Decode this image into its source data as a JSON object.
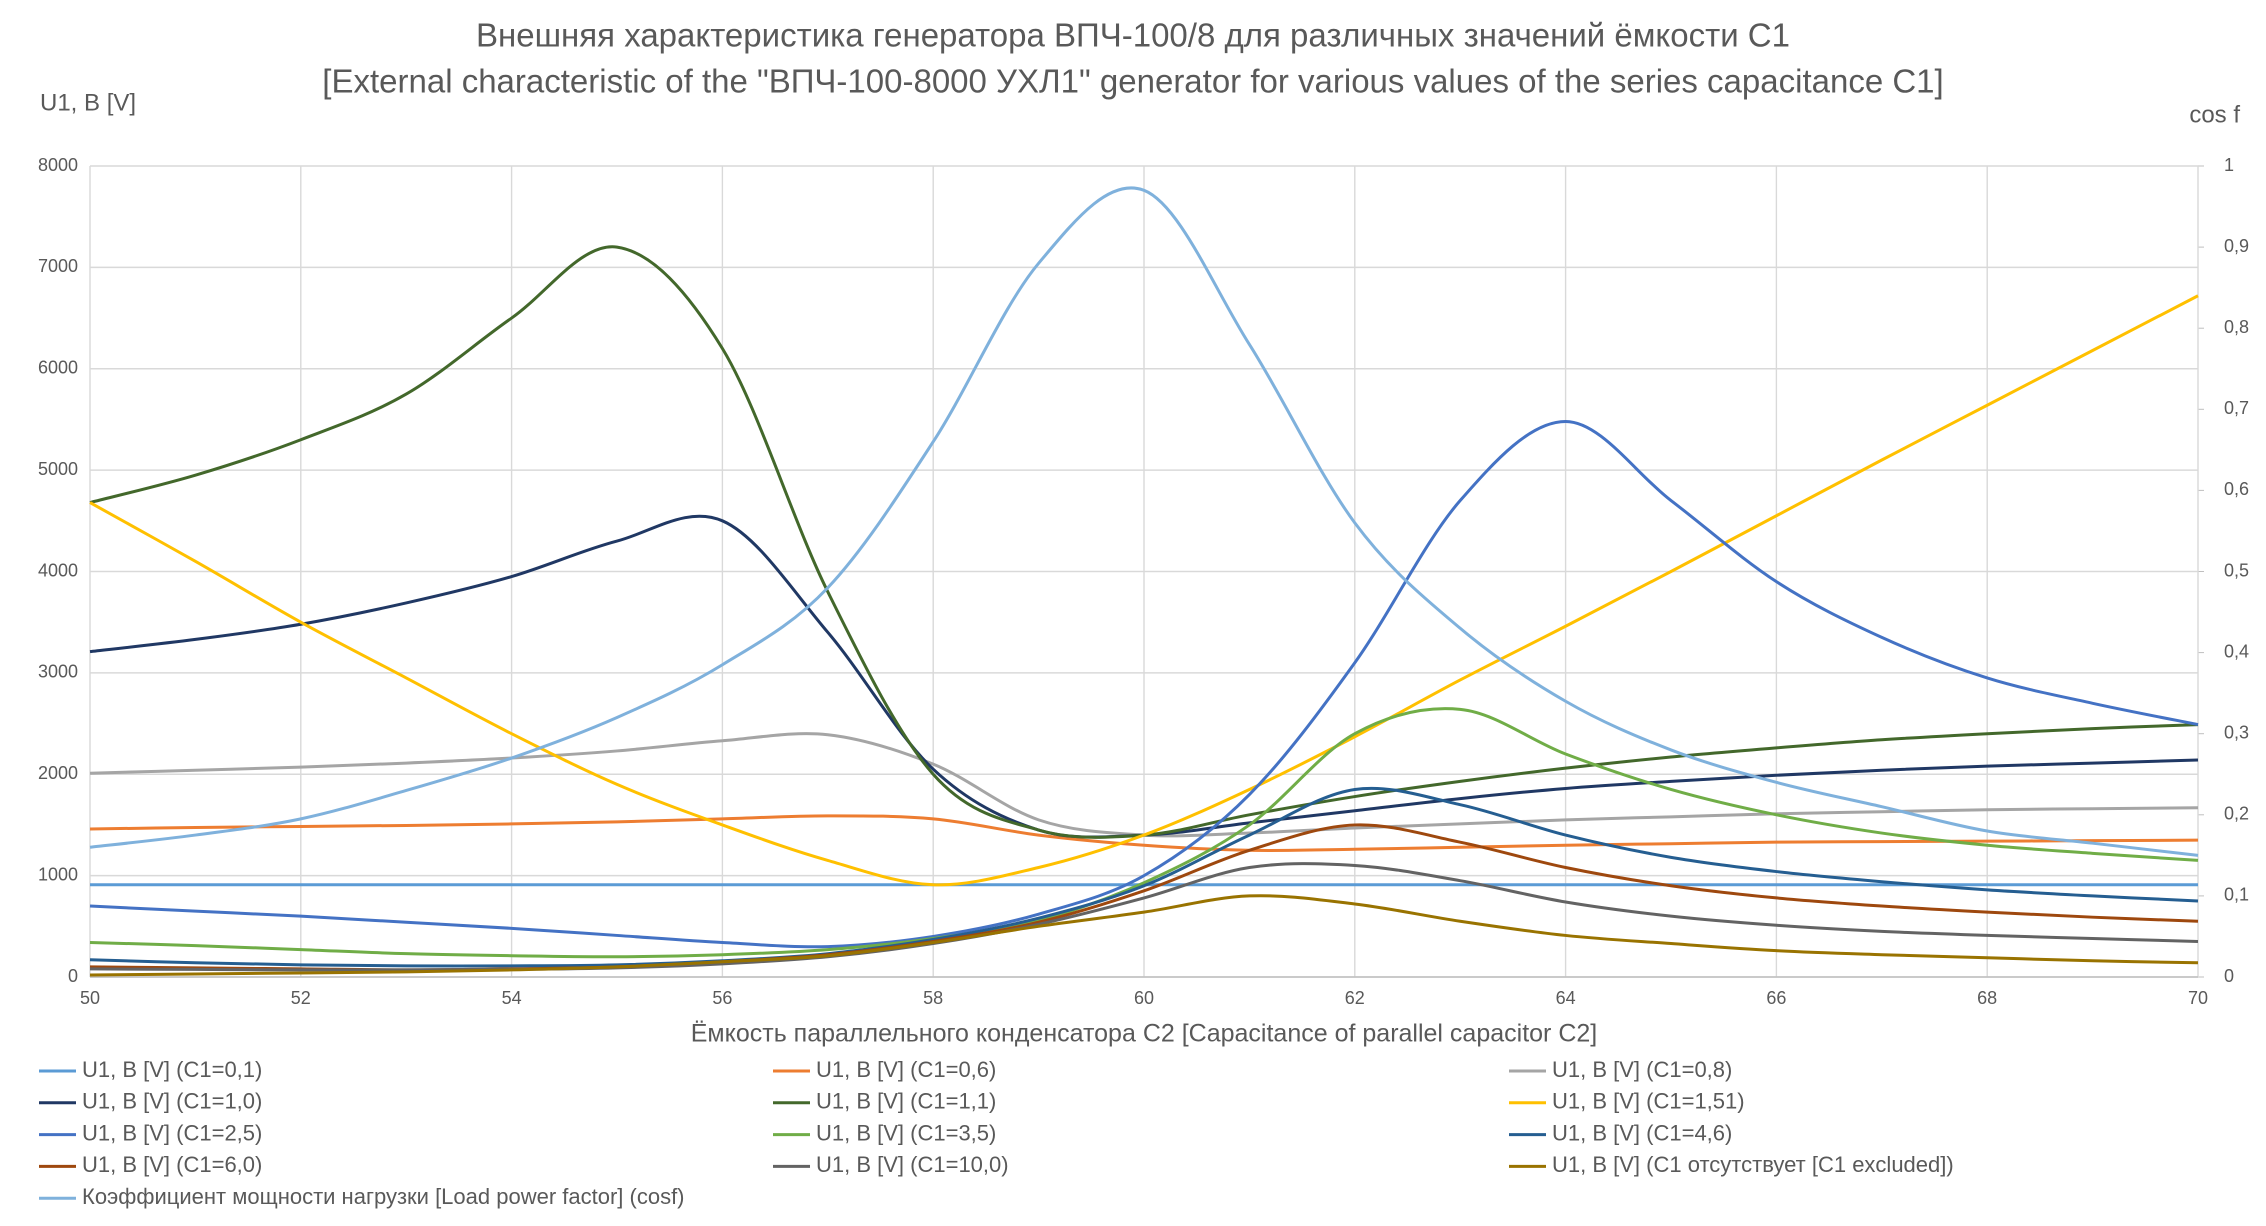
{
  "chart_data": {
    "type": "line",
    "title": "Внешняя характеристика генератора ВПЧ-100/8 для различных значений ёмкости С1",
    "subtitle": "[External characteristic of the \"ВПЧ-100-8000 УХЛ1\" generator for various values of the series capacitance C1]",
    "x_label": "Ёмкость параллельного конденсатора С2 [Capacitance of parallel capacitor C2]",
    "y_label": "U1, В [V]",
    "y2_label": "cos f",
    "x": [
      50,
      51,
      52,
      53,
      54,
      55,
      56,
      57,
      58,
      59,
      60,
      61,
      62,
      63,
      64,
      65,
      66,
      67,
      68,
      69,
      70
    ],
    "xlim": [
      50,
      70
    ],
    "xticks": [
      50,
      52,
      54,
      56,
      58,
      60,
      62,
      64,
      66,
      68,
      70
    ],
    "ylim": [
      0,
      8000
    ],
    "yticks": [
      0,
      1000,
      2000,
      3000,
      4000,
      5000,
      6000,
      7000,
      8000
    ],
    "y2lim": [
      0,
      1
    ],
    "y2ticks": [
      0,
      {
        "value": 0.1,
        "label": "0,1"
      },
      {
        "value": 0.2,
        "label": "0,2"
      },
      {
        "value": 0.3,
        "label": "0,3"
      },
      {
        "value": 0.4,
        "label": "0,4"
      },
      {
        "value": 0.5,
        "label": "0,5"
      },
      {
        "value": 0.6,
        "label": "0,6"
      },
      {
        "value": 0.7,
        "label": "0,7"
      },
      {
        "value": 0.8,
        "label": "0,8"
      },
      {
        "value": 0.9,
        "label": "0,9"
      },
      1
    ],
    "grid": true,
    "legend": "bottom",
    "series": [
      {
        "name": "U1, В [V] (C1=0,1)",
        "color": "#5b9bd5",
        "values": [
          910,
          910,
          910,
          910,
          910,
          910,
          910,
          910,
          910,
          910,
          910,
          910,
          910,
          910,
          910,
          910,
          910,
          910,
          910,
          910,
          910
        ]
      },
      {
        "name": "U1, В [V] (C1=0,6)",
        "color": "#ed7d31",
        "values": [
          1460,
          1475,
          1485,
          1495,
          1510,
          1530,
          1560,
          1590,
          1560,
          1400,
          1300,
          1250,
          1260,
          1280,
          1300,
          1315,
          1330,
          1335,
          1340,
          1345,
          1350
        ]
      },
      {
        "name": "U1, В [V] (C1=0,8)",
        "color": "#a5a5a5",
        "values": [
          2010,
          2040,
          2070,
          2110,
          2160,
          2230,
          2330,
          2390,
          2100,
          1550,
          1400,
          1420,
          1470,
          1510,
          1550,
          1580,
          1610,
          1630,
          1650,
          1660,
          1670
        ]
      },
      {
        "name": "U1, В [V] (C1=1,0)",
        "color": "#203864",
        "values": [
          3210,
          3330,
          3480,
          3690,
          3950,
          4300,
          4500,
          3400,
          2050,
          1450,
          1400,
          1520,
          1640,
          1760,
          1860,
          1930,
          1990,
          2040,
          2080,
          2110,
          2140
        ]
      },
      {
        "name": "U1, В [V] (C1=1,1)",
        "color": "#43682b",
        "values": [
          4680,
          4950,
          5300,
          5750,
          6500,
          7200,
          6200,
          3800,
          2000,
          1450,
          1400,
          1600,
          1780,
          1930,
          2060,
          2170,
          2260,
          2340,
          2400,
          2450,
          2490
        ]
      },
      {
        "name": "U1, В [V] (C1=1,51)",
        "color": "#ffc000",
        "values": [
          4680,
          4100,
          3500,
          2950,
          2400,
          1900,
          1500,
          1150,
          910,
          1080,
          1400,
          1850,
          2370,
          2930,
          3460,
          4000,
          4550,
          5100,
          5640,
          6180,
          6720
        ]
      },
      {
        "name": "U1, В [V] (C1=2,5)",
        "color": "#4472c4",
        "values": [
          700,
          650,
          600,
          540,
          480,
          410,
          340,
          300,
          400,
          620,
          1000,
          1800,
          3100,
          4700,
          5480,
          4700,
          3900,
          3350,
          2950,
          2700,
          2490
        ]
      },
      {
        "name": "U1, В [V] (C1=3,5)",
        "color": "#70ad47",
        "values": [
          340,
          310,
          270,
          230,
          210,
          200,
          220,
          270,
          380,
          560,
          930,
          1500,
          2400,
          2640,
          2200,
          1850,
          1600,
          1420,
          1300,
          1220,
          1150
        ]
      },
      {
        "name": "U1, В [V] (C1=4,6)",
        "color": "#255e91",
        "values": [
          170,
          140,
          120,
          110,
          110,
          120,
          160,
          230,
          370,
          580,
          900,
          1400,
          1850,
          1700,
          1400,
          1180,
          1040,
          940,
          860,
          800,
          750
        ]
      },
      {
        "name": "U1, В [V] (C1=6,0)",
        "color": "#9e480e",
        "values": [
          100,
          90,
          80,
          70,
          80,
          100,
          150,
          220,
          350,
          540,
          850,
          1250,
          1500,
          1330,
          1080,
          900,
          780,
          700,
          640,
          590,
          550
        ]
      },
      {
        "name": "U1, В [V] (C1=10,0)",
        "color": "#636363",
        "values": [
          80,
          75,
          70,
          70,
          75,
          90,
          130,
          200,
          330,
          520,
          780,
          1080,
          1100,
          950,
          740,
          600,
          510,
          450,
          410,
          380,
          350
        ]
      },
      {
        "name": "U1, В [V] (C1 отсутствует [C1 excluded])",
        "color": "#997300",
        "values": [
          20,
          30,
          40,
          50,
          70,
          100,
          150,
          210,
          340,
          500,
          640,
          800,
          720,
          550,
          410,
          330,
          260,
          220,
          190,
          160,
          140
        ]
      },
      {
        "name": "Коэффициент мощности нагрузки [Load power factor] (cosf)",
        "color": "#7fb1dc",
        "axis": "y2",
        "values": [
          0.16,
          0.175,
          0.195,
          0.23,
          0.27,
          0.32,
          0.385,
          0.48,
          0.66,
          0.88,
          0.97,
          0.78,
          0.56,
          0.43,
          0.34,
          0.28,
          0.24,
          0.21,
          0.18,
          0.165,
          0.15
        ]
      }
    ]
  }
}
